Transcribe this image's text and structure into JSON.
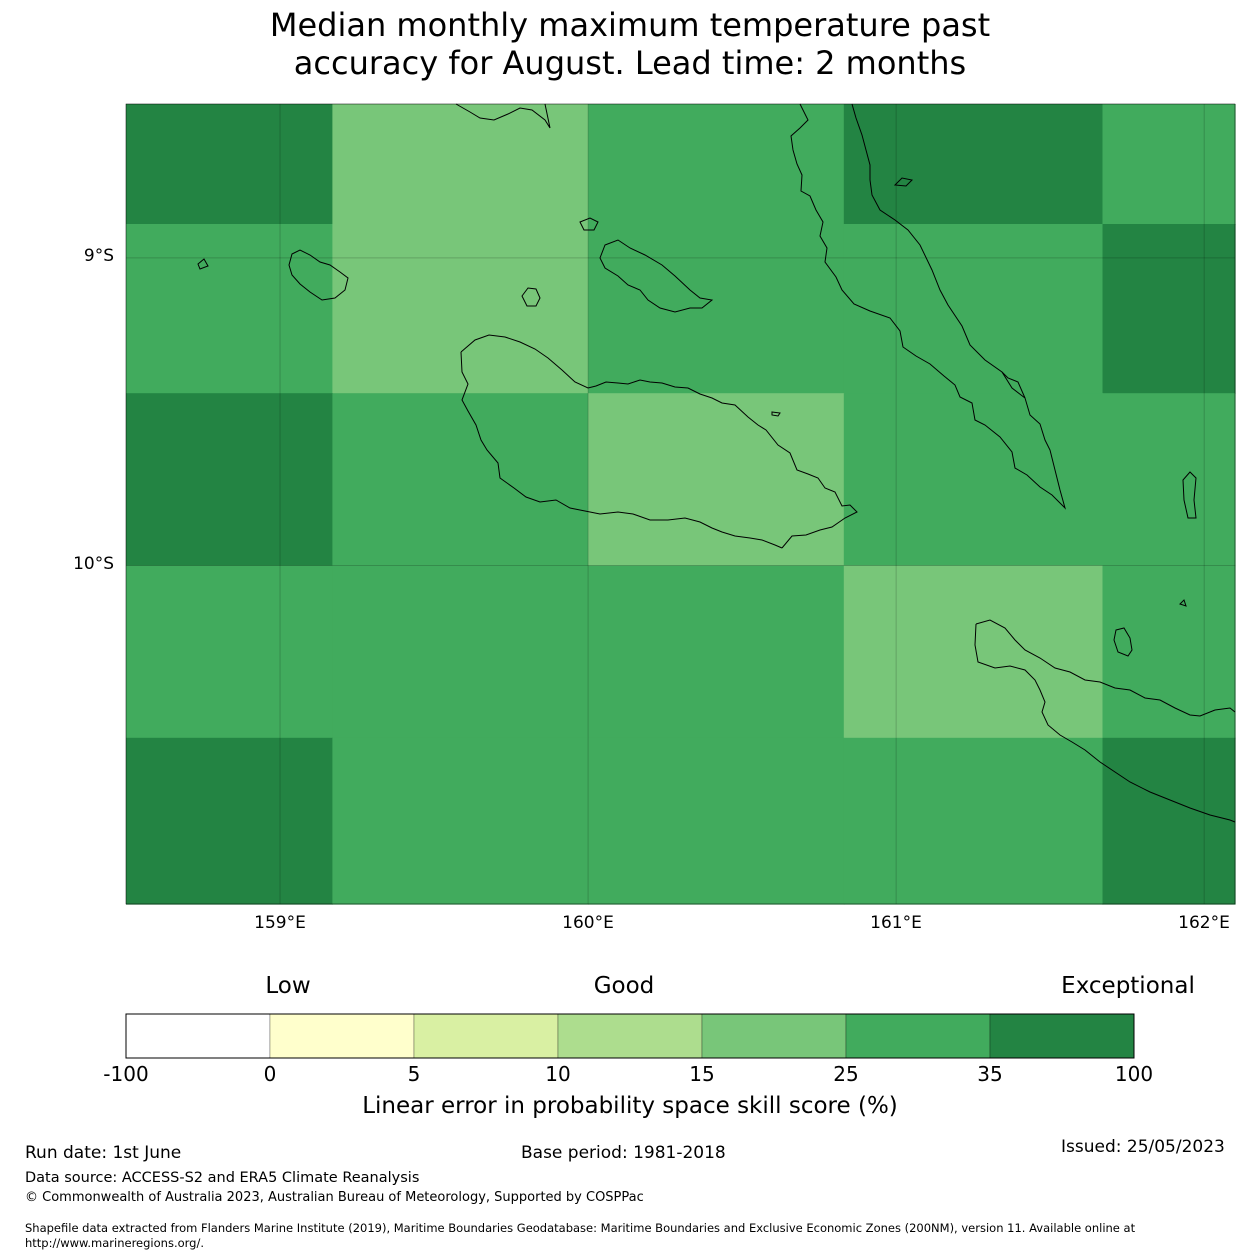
{
  "title_line1": "Median monthly maximum temperature past",
  "title_line2": "accuracy for August. Lead time: 2 months",
  "map": {
    "lat_labels": [
      "9°S",
      "10°S"
    ],
    "lon_labels": [
      "159°E",
      "160°E",
      "161°E",
      "162°E"
    ],
    "lon_range": [
      158.5,
      162.1
    ],
    "lat_range": [
      -8.5,
      -11.1
    ],
    "grid_lon_edges": [
      158.5,
      159.17,
      160.0,
      160.83,
      161.67,
      162.1
    ],
    "grid_lat_edges": [
      -8.5,
      -8.89,
      -9.44,
      -10.0,
      -10.56,
      -11.1
    ],
    "cells_category_index": [
      [
        6,
        4,
        5,
        6,
        5
      ],
      [
        5,
        4,
        5,
        5,
        6
      ],
      [
        6,
        5,
        4,
        5,
        5
      ],
      [
        5,
        5,
        5,
        4,
        5
      ],
      [
        6,
        5,
        5,
        5,
        6
      ]
    ]
  },
  "colorbar": {
    "categories": [
      "Low",
      "Good",
      "Exceptional"
    ],
    "ticks": [
      "-100",
      "0",
      "5",
      "10",
      "15",
      "25",
      "35",
      "100"
    ],
    "colors": [
      "#ffffff",
      "#ffffcc",
      "#d9f0a3",
      "#addd8e",
      "#78c679",
      "#41ab5d",
      "#238443"
    ],
    "label": "Linear error in probability space skill score (%)"
  },
  "footer": {
    "run_date": "Run date: 1st June",
    "base_period": "Base period: 1981-2018",
    "issued": "Issued: 25/05/2023",
    "data_source": "Data source: ACCESS-S2 and ERA5 Climate Reanalysis",
    "copyright": "© Commonwealth of Australia 2023, Australian Bureau of Meteorology, Supported by COSPPac",
    "shapefile_line1": "Shapefile data extracted from Flanders Marine Institute (2019), Maritime Boundaries Geodatabase: Maritime Boundaries and Exclusive Economic Zones (200NM), version 11. Available online at",
    "shapefile_line2": "http://www.marineregions.org/."
  }
}
